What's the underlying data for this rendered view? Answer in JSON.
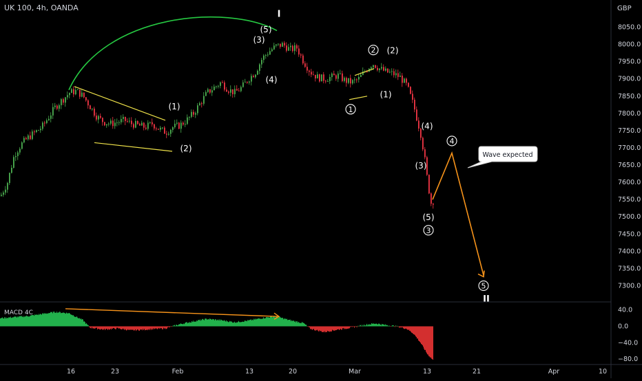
{
  "header": {
    "symbol_label": "UK 100, 4h, OANDA"
  },
  "price_axis": {
    "currency_label": "GBP"
  },
  "indicator": {
    "label": "MACD 4C"
  },
  "callout": {
    "text": "Wave expected"
  },
  "chart_data": [
    {
      "type": "candlestick",
      "title": "UK 100, 4h, OANDA",
      "ylabel": "GBP",
      "ylim": [
        7255,
        8105
      ],
      "yticks": [
        8050,
        8000,
        7950,
        7900,
        7850,
        7800,
        7750,
        7700,
        7650,
        7600,
        7550,
        7500,
        7450,
        7400,
        7350,
        7300
      ],
      "ytick_labels": [
        "8050.0",
        "8000.0",
        "7950.0",
        "7900.0",
        "7850.0",
        "7800.0",
        "7750.0",
        "7700.0",
        "7650.0",
        "7600.0",
        "7550.0",
        "7500.0",
        "7450.0",
        "7400.0",
        "7350.0",
        "7300.0"
      ],
      "xticks": [
        "16",
        "23",
        "Feb",
        "13",
        "20",
        "Mar",
        "13",
        "21",
        "Apr",
        "10"
      ],
      "grid": false,
      "up_color": "#26a69a",
      "candle_up_color": "#4caf50",
      "candle_down_color": "#f23645",
      "price_path": [
        [
          0,
          7560
        ],
        [
          10,
          7600
        ],
        [
          20,
          7680
        ],
        [
          30,
          7710
        ],
        [
          40,
          7730
        ],
        [
          50,
          7745
        ],
        [
          60,
          7760
        ],
        [
          70,
          7790
        ],
        [
          80,
          7820
        ],
        [
          90,
          7840
        ],
        [
          100,
          7860
        ],
        [
          110,
          7865
        ],
        [
          120,
          7850
        ],
        [
          130,
          7820
        ],
        [
          140,
          7790
        ],
        [
          150,
          7775
        ],
        [
          160,
          7770
        ],
        [
          170,
          7775
        ],
        [
          180,
          7780
        ],
        [
          190,
          7770
        ],
        [
          200,
          7765
        ],
        [
          210,
          7760
        ],
        [
          220,
          7770
        ],
        [
          230,
          7755
        ],
        [
          240,
          7745
        ],
        [
          250,
          7760
        ],
        [
          260,
          7765
        ],
        [
          270,
          7780
        ],
        [
          280,
          7800
        ],
        [
          290,
          7830
        ],
        [
          300,
          7860
        ],
        [
          310,
          7875
        ],
        [
          320,
          7890
        ],
        [
          330,
          7870
        ],
        [
          340,
          7860
        ],
        [
          350,
          7875
        ],
        [
          360,
          7900
        ],
        [
          370,
          7920
        ],
        [
          380,
          7960
        ],
        [
          390,
          7980
        ],
        [
          400,
          7995
        ],
        [
          410,
          8000
        ],
        [
          420,
          7985
        ],
        [
          430,
          7990
        ],
        [
          440,
          7950
        ],
        [
          450,
          7920
        ],
        [
          460,
          7905
        ],
        [
          470,
          7900
        ],
        [
          480,
          7905
        ],
        [
          490,
          7910
        ],
        [
          500,
          7895
        ],
        [
          510,
          7890
        ],
        [
          520,
          7900
        ],
        [
          530,
          7925
        ],
        [
          540,
          7945
        ],
        [
          550,
          7930
        ],
        [
          560,
          7920
        ],
        [
          570,
          7915
        ],
        [
          580,
          7905
        ],
        [
          590,
          7880
        ],
        [
          600,
          7820
        ],
        [
          610,
          7740
        ],
        [
          615,
          7680
        ],
        [
          620,
          7600
        ],
        [
          625,
          7540
        ],
        [
          630,
          7550
        ]
      ],
      "projection": {
        "points": [
          [
            628,
            7550
          ],
          [
            656,
            7685
          ],
          [
            702,
            7330
          ]
        ],
        "color": "#f7931a"
      },
      "wave_labels": [
        {
          "text": "I",
          "x": 405,
          "y": 8080,
          "style": "roman"
        },
        {
          "text": "(5)",
          "x": 386,
          "y": 8035,
          "style": "paren"
        },
        {
          "text": "(3)",
          "x": 376,
          "y": 8005,
          "style": "paren"
        },
        {
          "text": "(4)",
          "x": 394,
          "y": 7890,
          "style": "paren"
        },
        {
          "text": "(1)",
          "x": 253,
          "y": 7812,
          "style": "paren"
        },
        {
          "text": "(2)",
          "x": 270,
          "y": 7690,
          "style": "paren"
        },
        {
          "text": "2",
          "x": 542,
          "y": 7976,
          "style": "circle"
        },
        {
          "text": "(2)",
          "x": 570,
          "y": 7974,
          "style": "paren"
        },
        {
          "text": "1",
          "x": 509,
          "y": 7804,
          "style": "circle"
        },
        {
          "text": "(1)",
          "x": 560,
          "y": 7847,
          "style": "paren"
        },
        {
          "text": "(4)",
          "x": 620,
          "y": 7755,
          "style": "paren"
        },
        {
          "text": "4",
          "x": 656,
          "y": 7712,
          "style": "circle"
        },
        {
          "text": "(3)",
          "x": 611,
          "y": 7640,
          "style": "paren"
        },
        {
          "text": "(5)",
          "x": 622,
          "y": 7490,
          "style": "paren"
        },
        {
          "text": "3",
          "x": 622,
          "y": 7453,
          "style": "circle"
        },
        {
          "text": "5",
          "x": 702,
          "y": 7292,
          "style": "circle"
        },
        {
          "text": "II",
          "x": 706,
          "y": 7253,
          "style": "roman"
        }
      ],
      "trendlines": [
        {
          "from": [
            108,
            7878
          ],
          "to": [
            240,
            7780
          ],
          "color": "#f0e34a"
        },
        {
          "from": [
            137,
            7715
          ],
          "to": [
            250,
            7690
          ],
          "color": "#f0e34a"
        },
        {
          "from": [
            515,
            7910
          ],
          "to": [
            543,
            7930
          ],
          "color": "#f0e34a"
        },
        {
          "from": [
            507,
            7840
          ],
          "to": [
            533,
            7850
          ],
          "color": "#f0e34a"
        }
      ],
      "arc": {
        "from": [
          100,
          7868
        ],
        "to": [
          402,
          8040
        ],
        "color": "#26c942"
      }
    },
    {
      "type": "bar",
      "title": "MACD 4C",
      "ylim": [
        -90,
        58
      ],
      "yticks": [
        40,
        0,
        -40,
        -80
      ],
      "ytick_labels": [
        "40.0",
        "0.0",
        "−40.0",
        "−80.0"
      ],
      "series_shape": [
        [
          0,
          20
        ],
        [
          40,
          25
        ],
        [
          80,
          35
        ],
        [
          100,
          32
        ],
        [
          120,
          15
        ],
        [
          130,
          -3
        ],
        [
          150,
          -8
        ],
        [
          170,
          -5
        ],
        [
          190,
          -10
        ],
        [
          210,
          -8
        ],
        [
          240,
          -5
        ],
        [
          260,
          5
        ],
        [
          280,
          12
        ],
        [
          300,
          18
        ],
        [
          320,
          15
        ],
        [
          340,
          10
        ],
        [
          360,
          14
        ],
        [
          380,
          20
        ],
        [
          395,
          24
        ],
        [
          405,
          22
        ],
        [
          420,
          15
        ],
        [
          440,
          8
        ],
        [
          450,
          -6
        ],
        [
          470,
          -14
        ],
        [
          490,
          -8
        ],
        [
          510,
          -3
        ],
        [
          530,
          4
        ],
        [
          545,
          7
        ],
        [
          560,
          3
        ],
        [
          575,
          0
        ],
        [
          590,
          -6
        ],
        [
          600,
          -18
        ],
        [
          610,
          -40
        ],
        [
          620,
          -68
        ],
        [
          628,
          -82
        ]
      ],
      "divergence_line": {
        "from": [
          95,
          43
        ],
        "to": [
          405,
          24
        ],
        "color": "#f7931a"
      }
    }
  ]
}
